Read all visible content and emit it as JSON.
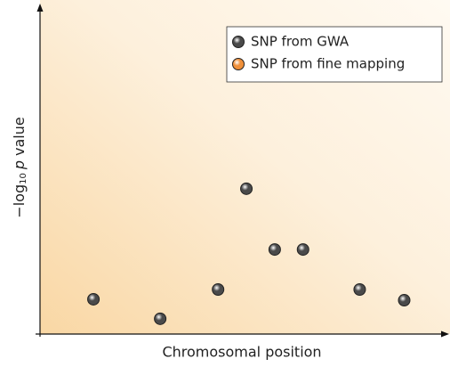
{
  "chart_data": {
    "type": "scatter",
    "xlabel": "Chromosomal position",
    "ylabel_parts": [
      "−log",
      "10",
      "p",
      "value"
    ],
    "xlim": [
      0,
      100
    ],
    "ylim": [
      0,
      100
    ],
    "legend": "upper right",
    "series": [
      {
        "name": "SNP from GWA",
        "color": "#4a4a4a",
        "x": [
          13.2,
          29.7,
          44,
          51,
          58,
          65,
          79,
          90
        ],
        "values": [
          10.7,
          4.7,
          13.7,
          44.7,
          26,
          26,
          13.7,
          10.4
        ]
      },
      {
        "name": "SNP from fine mapping",
        "color": "#f0903a",
        "x": [],
        "values": []
      }
    ]
  }
}
